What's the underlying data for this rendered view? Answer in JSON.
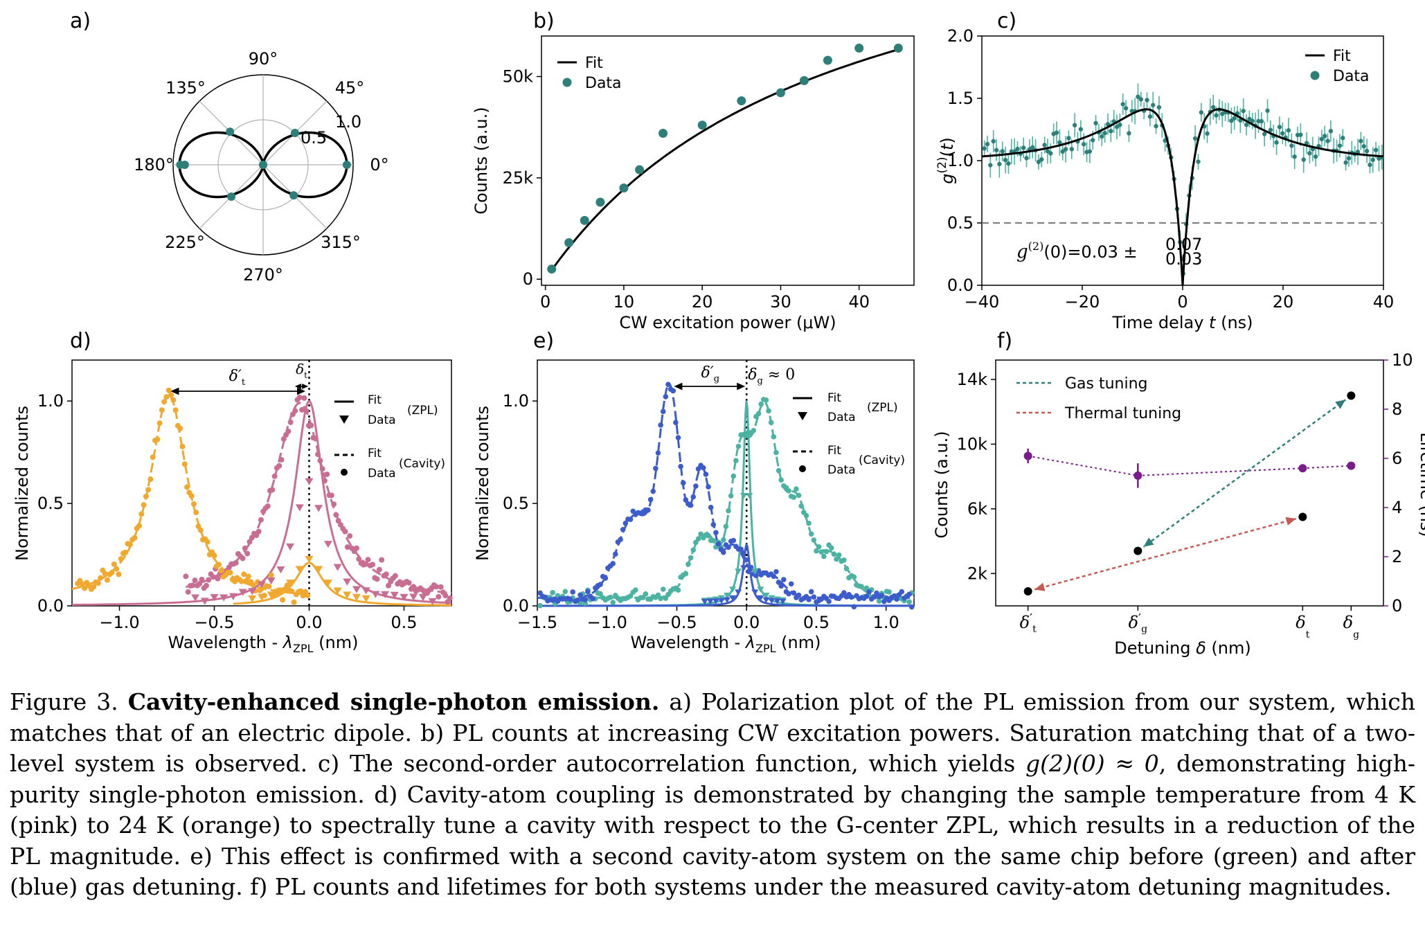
{
  "colors": {
    "teal": "#2e7f7a",
    "teal_light": "#4cb3a3",
    "pink": "#c96e93",
    "orange": "#f0a92e",
    "blue": "#3d5ccc",
    "green": "#4cb3a3",
    "red": "#c65a50",
    "purple": "#7b1a8c",
    "black": "#000000",
    "gray": "#7a7a7a"
  },
  "chart_data": [
    {
      "id": "a",
      "panel_label": "a)",
      "type": "polar",
      "angle_labels": [
        "0°",
        "45°",
        "90°",
        "135°",
        "180°",
        "225°",
        "270°",
        "315°"
      ],
      "radial_ticks": [
        0.5,
        1.0
      ],
      "radial_tick_labels": [
        "0.5",
        "1.0"
      ],
      "fit": {
        "model": "cos^2(theta)",
        "amplitude": 1.0
      },
      "data": {
        "angles_deg": [
          0,
          45,
          90,
          135,
          180,
          225,
          270,
          315
        ],
        "values": [
          0.93,
          0.5,
          0.0,
          0.52,
          0.87,
          0.5,
          0.0,
          0.48
        ]
      }
    },
    {
      "id": "b",
      "panel_label": "b)",
      "type": "scatter+line",
      "xlabel": "CW excitation power (μW)",
      "ylabel": "Counts (a.u.)",
      "xlim": [
        -0.5,
        47
      ],
      "ylim": [
        -1500,
        60000
      ],
      "xticks": [
        0,
        10,
        20,
        30,
        40
      ],
      "yticks": [
        0,
        25000,
        50000
      ],
      "ytick_labels": [
        "0",
        "25k",
        "50k"
      ],
      "legend": [
        "Fit",
        "Data"
      ],
      "data": {
        "x": [
          0.8,
          3.0,
          5.0,
          7.0,
          10.0,
          12.0,
          15.0,
          20.0,
          25.0,
          30.0,
          33.0,
          36.0,
          40.0,
          45.0
        ],
        "y": [
          2500,
          9000,
          14500,
          19000,
          22500,
          27000,
          36000,
          38000,
          44000,
          46000,
          49000,
          54000,
          57000,
          57000
        ]
      },
      "fit": {
        "model": "A*x/(x+Psat)",
        "A": 102000,
        "Psat": 36
      }
    },
    {
      "id": "c",
      "panel_label": "c)",
      "type": "scatter+line",
      "xlabel": "Time delay t (ns)",
      "ylabel": "g(2)(t)",
      "xlim": [
        -40,
        40
      ],
      "ylim": [
        0.0,
        2.0
      ],
      "xticks": [
        -40,
        -20,
        0,
        20,
        40
      ],
      "xtick_labels": [
        "−40",
        "−20",
        "0",
        "20",
        "40"
      ],
      "yticks": [
        0.0,
        0.5,
        1.0,
        1.5,
        2.0
      ],
      "ytick_labels": [
        "0.0",
        "0.5",
        "1.0",
        "1.5",
        "2.0"
      ],
      "threshold": 0.5,
      "legend": [
        "Fit",
        "Data"
      ],
      "annotation": {
        "main": "g",
        "sup": "(2)",
        "rest": "(0)=0.03 ±",
        "up": "0.07",
        "down": "0.03"
      },
      "fit": {
        "model": "1 - (1+a)exp(-|t|/t1) + a exp(-|t|/t2)",
        "a": 0.95,
        "t1_ns": 2.5,
        "t2_ns": 12.0
      }
    },
    {
      "id": "d",
      "panel_label": "d)",
      "type": "line+scatter",
      "xlabel": "Wavelength - λZPL (nm)",
      "ylabel": "Normalized counts",
      "xlim": [
        -1.25,
        0.75
      ],
      "ylim": [
        0.0,
        1.2
      ],
      "xticks": [
        -1.0,
        -0.5,
        0.0,
        0.5
      ],
      "xtick_labels": [
        "−1.0",
        "−0.5",
        "0.0",
        "0.5"
      ],
      "yticks": [
        0.0,
        0.5,
        1.0
      ],
      "ytick_labels": [
        "0.0",
        "0.5",
        "1.0"
      ],
      "legend": {
        "fit": "Fit",
        "data": "Data",
        "zpl": "(ZPL)",
        "cavity": "(Cavity)"
      },
      "annotations": {
        "delta_t_prime": "δ′",
        "delta_t_prime_sub": "t",
        "delta_t": "δ",
        "delta_t_sub": "t"
      },
      "series": [
        {
          "name": "Cavity 4 K (pink)",
          "color": "pink",
          "center": -0.05,
          "width": 0.17
        },
        {
          "name": "Cavity 24 K (orange)",
          "color": "orange",
          "center": -0.74,
          "width": 0.12
        },
        {
          "name": "ZPL 4 K (pink)",
          "color": "pink",
          "center": 0.0,
          "amplitude": 1.0,
          "width": 0.09
        },
        {
          "name": "ZPL 24 K (orange)",
          "color": "orange",
          "center": 0.0,
          "amplitude": 0.21,
          "width": 0.09
        }
      ]
    },
    {
      "id": "e",
      "panel_label": "e)",
      "type": "line+scatter",
      "xlabel": "Wavelength - λZPL (nm)",
      "ylabel": "Normalized counts",
      "xlim": [
        -1.5,
        1.2
      ],
      "ylim": [
        0.0,
        1.2
      ],
      "xticks": [
        -1.5,
        -1.0,
        -0.5,
        0.0,
        0.5,
        1.0
      ],
      "xtick_labels": [
        "−1.5",
        "−1.0",
        "−0.5",
        "0.0",
        "0.5",
        "1.0"
      ],
      "yticks": [
        0.0,
        0.5,
        1.0
      ],
      "ytick_labels": [
        "0.0",
        "0.5",
        "1.0"
      ],
      "legend": {
        "fit": "Fit",
        "data": "Data",
        "zpl": "(ZPL)",
        "cavity": "(Cavity)"
      },
      "annotations": {
        "delta_g_prime": "δ′",
        "delta_g_prime_sub": "g",
        "delta_g": "δ",
        "delta_g_sub": "g",
        "delta_g_rest": " ≈ 0"
      },
      "series": [
        {
          "name": "Cavity before (green)",
          "color": "green",
          "peaks": [
            [
              0.13,
              0.92,
              0.1
            ],
            [
              -0.05,
              0.65,
              0.08
            ],
            [
              0.35,
              0.45,
              0.1
            ],
            [
              -0.3,
              0.32,
              0.12
            ],
            [
              0.6,
              0.22,
              0.15
            ]
          ]
        },
        {
          "name": "Cavity after (blue)",
          "color": "blue",
          "peaks": [
            [
              -0.55,
              0.98,
              0.09
            ],
            [
              -0.32,
              0.62,
              0.08
            ],
            [
              -0.8,
              0.4,
              0.15
            ],
            [
              -0.1,
              0.25,
              0.1
            ],
            [
              0.15,
              0.12,
              0.12
            ]
          ]
        },
        {
          "name": "ZPL before (green)",
          "color": "green",
          "amplitude": 1.0
        },
        {
          "name": "ZPL after (blue)",
          "color": "blue",
          "amplitude": 0.3
        }
      ]
    },
    {
      "id": "f",
      "panel_label": "f)",
      "type": "scatter",
      "xlabel": "Detuning δ (nm)",
      "ylabel_left": "Counts (a.u.)",
      "ylabel_right": "Lifetime (ns)",
      "categories": [
        "δ′t",
        "δ′g",
        "δt",
        "δg"
      ],
      "category_symbols": [
        {
          "main": "δ",
          "prime": "′",
          "sub": "t"
        },
        {
          "main": "δ",
          "prime": "′",
          "sub": "g"
        },
        {
          "main": "δ",
          "prime": "",
          "sub": "t"
        },
        {
          "main": "δ",
          "prime": "",
          "sub": "g"
        }
      ],
      "x_positions": [
        0.0,
        0.34,
        0.85,
        1.0
      ],
      "counts": [
        900,
        3400,
        5500,
        13000
      ],
      "lifetime_ns": [
        6.1,
        5.3,
        5.6,
        5.7
      ],
      "lifetime_err": [
        0.3,
        0.5,
        0.1,
        0.1
      ],
      "ylim_left": [
        0,
        15200
      ],
      "ylim_right": [
        0,
        10
      ],
      "yticks_left": [
        2000,
        6000,
        10000,
        14000
      ],
      "ytick_labels_left": [
        "2k",
        "6k",
        "10k",
        "14k"
      ],
      "yticks_right": [
        0,
        2,
        4,
        6,
        8,
        10
      ],
      "ytick_labels_right": [
        "0",
        "2",
        "4",
        "6",
        "8",
        "10"
      ],
      "legend": [
        "Gas tuning",
        "Thermal tuning"
      ]
    }
  ],
  "caption": {
    "fig_label": "Figure 3.",
    "title": "Cavity-enhanced single-photon emission.",
    "part_a": "a) Polarization plot of the PL emission from our system, which matches that of an electric dipole.",
    "part_b": "b) PL counts at increasing CW excitation powers. Saturation matching that of a two-level system is observed.",
    "part_c1": "c) The second-order autocorrelation function, which yields",
    "part_c_math": "g(2)(0) ≈ 0",
    "part_c2": ", demonstrating high-purity single-photon emission.",
    "part_d": "d) Cavity-atom coupling is demonstrated by changing the sample temperature from 4 K (pink) to 24 K (orange) to spectrally tune a cavity with respect to the G-center ZPL, which results in a reduction of the PL magnitude.",
    "part_e": "e) This effect is confirmed with a second cavity-atom system on the same chip before (green) and after (blue) gas detuning.",
    "part_f": "f) PL counts and lifetimes for both systems under the measured cavity-atom detuning magnitudes."
  }
}
